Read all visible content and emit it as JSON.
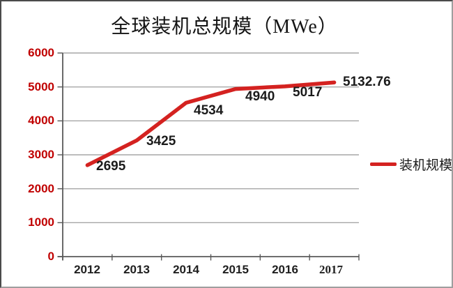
{
  "chart_data": {
    "type": "line",
    "title": "全球装机总规模（MWe）",
    "categories": [
      "2012",
      "2013",
      "2014",
      "2015",
      "2016",
      "2017"
    ],
    "series": [
      {
        "name": "装机规模",
        "values": [
          2695,
          3425,
          4534,
          4940,
          5017,
          5132.76
        ]
      }
    ],
    "value_labels": [
      "2695",
      "3425",
      "4534",
      "4940",
      "5017",
      "5132.76"
    ],
    "y_ticks": [
      0,
      1000,
      2000,
      3000,
      4000,
      5000,
      6000
    ],
    "y_tick_labels": [
      "6000",
      "5000",
      "4000",
      "3000",
      "2000",
      "1000",
      "0"
    ],
    "xlabel": "",
    "ylabel": "",
    "ylim": [
      0,
      6000
    ],
    "grid": true,
    "legend_position": "right",
    "colors": {
      "line": "#d42220",
      "y_tick_text": "#c00000",
      "data_label": "#1b1b1b",
      "gridline": "#a6a6a6",
      "axis": "#595959"
    }
  }
}
